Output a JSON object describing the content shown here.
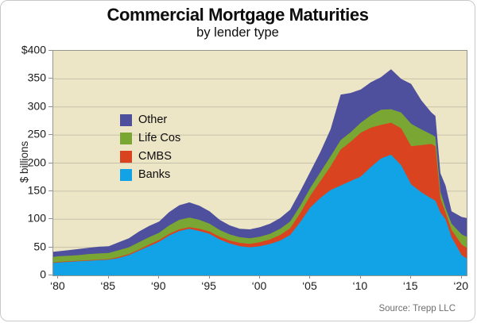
{
  "header": {
    "title": "Commercial Mortgage Maturities",
    "subtitle": "by lender type"
  },
  "footer": {
    "source": "Source: Trepp LLC"
  },
  "chart_data": {
    "type": "area",
    "stacked": true,
    "title": "Commercial Mortgage Maturities",
    "subtitle": "by lender type",
    "ylabel": "$ billions",
    "xlabel": "",
    "ylim": [
      0,
      400
    ],
    "grid": true,
    "plot_bg": "#ede6c6",
    "grid_color": "#c6c1ab",
    "axis_color": "#96968e",
    "yticks": {
      "values": [
        400,
        350,
        300,
        250,
        200,
        150,
        100,
        50,
        0
      ],
      "labels": [
        "$400",
        "350",
        "300",
        "250",
        "200",
        "150",
        "100",
        "50",
        "0"
      ]
    },
    "xticks": {
      "years": [
        1980,
        1985,
        1990,
        1995,
        2000,
        2005,
        2010,
        2015,
        2020
      ],
      "labels": [
        "‘80",
        "‘85",
        "‘90",
        "‘95",
        "‘00",
        "‘05",
        "‘10",
        "‘15",
        "‘20"
      ]
    },
    "x_domain": [
      1979.5,
      2020.5
    ],
    "x": [
      1979.5,
      1980,
      1981,
      1982,
      1983,
      1984,
      1985,
      1986,
      1987,
      1988,
      1989,
      1990,
      1991,
      1992,
      1993,
      1994,
      1995,
      1996,
      1997,
      1998,
      1999,
      2000,
      2001,
      2002,
      2003,
      2004,
      2005,
      2006,
      2007,
      2008,
      2009,
      2010,
      2011,
      2012,
      2013,
      2014,
      2015,
      2016,
      2017,
      2017.4,
      2017.9,
      2018.4,
      2019,
      2020,
      2020.5
    ],
    "series": [
      {
        "name": "Banks",
        "color": "#12a3e6",
        "values": [
          22,
          23,
          24,
          25,
          26,
          27,
          28,
          31,
          36,
          44,
          52,
          60,
          71,
          79,
          83,
          79,
          74,
          64,
          57,
          52,
          50,
          52,
          56,
          62,
          72,
          95,
          121,
          138,
          152,
          160,
          168,
          176,
          193,
          208,
          215,
          196,
          162,
          148,
          137,
          133,
          112,
          100,
          68,
          36,
          30
        ]
      },
      {
        "name": "CMBS",
        "color": "#d9431f",
        "values": [
          1,
          1,
          1,
          1,
          1,
          1,
          1,
          2,
          2,
          2,
          3,
          3,
          3,
          3,
          3,
          4,
          4,
          5,
          5,
          6,
          6,
          7,
          8,
          10,
          12,
          16,
          21,
          30,
          42,
          64,
          70,
          78,
          70,
          60,
          57,
          66,
          68,
          84,
          97,
          97,
          25,
          12,
          13,
          19,
          19
        ]
      },
      {
        "name": "Life Cos",
        "color": "#7aa633",
        "values": [
          10,
          10,
          10,
          10,
          11,
          11,
          11,
          12,
          12,
          13,
          13,
          13,
          15,
          17,
          17,
          16,
          14,
          12,
          11,
          10,
          10,
          10,
          10,
          11,
          12,
          13,
          14,
          16,
          18,
          17,
          17,
          18,
          22,
          27,
          24,
          28,
          40,
          28,
          17,
          17,
          12,
          8,
          11,
          18,
          20
        ]
      },
      {
        "name": "Other",
        "color": "#4e4f9d",
        "values": [
          9,
          9,
          10,
          11,
          11,
          12,
          12,
          14,
          16,
          19,
          20,
          20,
          24,
          26,
          27,
          25,
          22,
          18,
          16,
          15,
          16,
          17,
          18,
          19,
          21,
          26,
          29,
          36,
          48,
          81,
          70,
          59,
          59,
          58,
          71,
          60,
          71,
          52,
          39,
          37,
          33,
          40,
          22,
          31,
          33
        ]
      }
    ],
    "legend": {
      "position": "top-left",
      "items": [
        {
          "label": "Other",
          "color": "#4e4f9d"
        },
        {
          "label": "Life Cos",
          "color": "#7aa633"
        },
        {
          "label": "CMBS",
          "color": "#d9431f"
        },
        {
          "label": "Banks",
          "color": "#12a3e6"
        }
      ]
    }
  }
}
